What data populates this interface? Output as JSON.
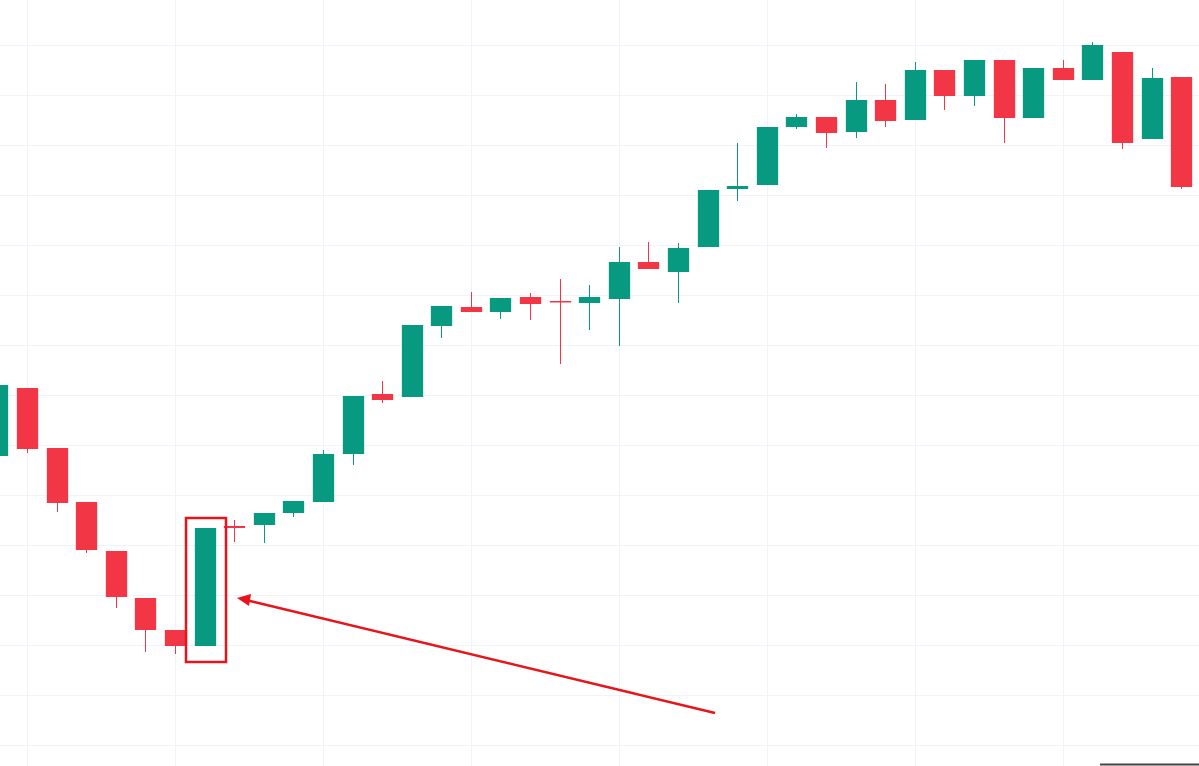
{
  "chart_data": {
    "type": "candlestick",
    "x": [
      0,
      1,
      2,
      3,
      4,
      5,
      6,
      7,
      8,
      9,
      10,
      11,
      12,
      13,
      14,
      15,
      16,
      17,
      18,
      19,
      20,
      21,
      22,
      23,
      24,
      25,
      26,
      27,
      28,
      29,
      30,
      31,
      32,
      33,
      34,
      35,
      36,
      37,
      38,
      39,
      40
    ],
    "open": [
      310,
      378,
      318,
      264,
      215,
      168,
      136,
      120,
      240,
      241,
      253,
      264,
      312,
      372,
      369,
      440,
      459,
      454,
      469,
      465,
      463,
      467,
      504,
      494,
      519,
      577,
      581,
      639,
      649,
      634,
      666,
      646,
      696,
      670,
      706,
      648,
      698,
      686,
      714,
      627,
      689
    ],
    "high": [
      381,
      378,
      318,
      264,
      215,
      168,
      136,
      238,
      246,
      253,
      265,
      316,
      370,
      385,
      441,
      460,
      474,
      468,
      473,
      487,
      481,
      519,
      524,
      523,
      576,
      623,
      639,
      652,
      649,
      684,
      682,
      704,
      696,
      706,
      706,
      698,
      706,
      724,
      714,
      698,
      689
    ],
    "low": [
      310,
      313,
      254,
      213,
      158,
      114,
      112,
      120,
      224,
      223,
      249,
      264,
      301,
      363,
      369,
      428,
      454,
      447,
      446,
      402,
      436,
      420,
      497,
      463,
      519,
      565,
      581,
      637,
      618,
      628,
      639,
      646,
      656,
      660,
      623,
      648,
      686,
      686,
      617,
      627,
      577
    ],
    "close": [
      381,
      317,
      263,
      216,
      169,
      136,
      120,
      238,
      238,
      253,
      265,
      312,
      370,
      366,
      441,
      460,
      454,
      468,
      462,
      464,
      469,
      504,
      497,
      518,
      576,
      580,
      639,
      649,
      633,
      666,
      645,
      696,
      670,
      706,
      648,
      698,
      686,
      721,
      623,
      688,
      579
    ],
    "up_color": "#089981",
    "down_color": "#f23645",
    "xlim": [
      0.09,
      40.6
    ],
    "ylim": [
      0,
      766
    ],
    "xticks": [
      1,
      6,
      11,
      16,
      21,
      26,
      31,
      36
    ],
    "yticks": [
      21,
      71,
      121,
      171,
      221,
      271,
      321,
      371,
      421,
      471,
      521,
      571,
      621,
      671,
      721
    ],
    "grid": true
  }
}
